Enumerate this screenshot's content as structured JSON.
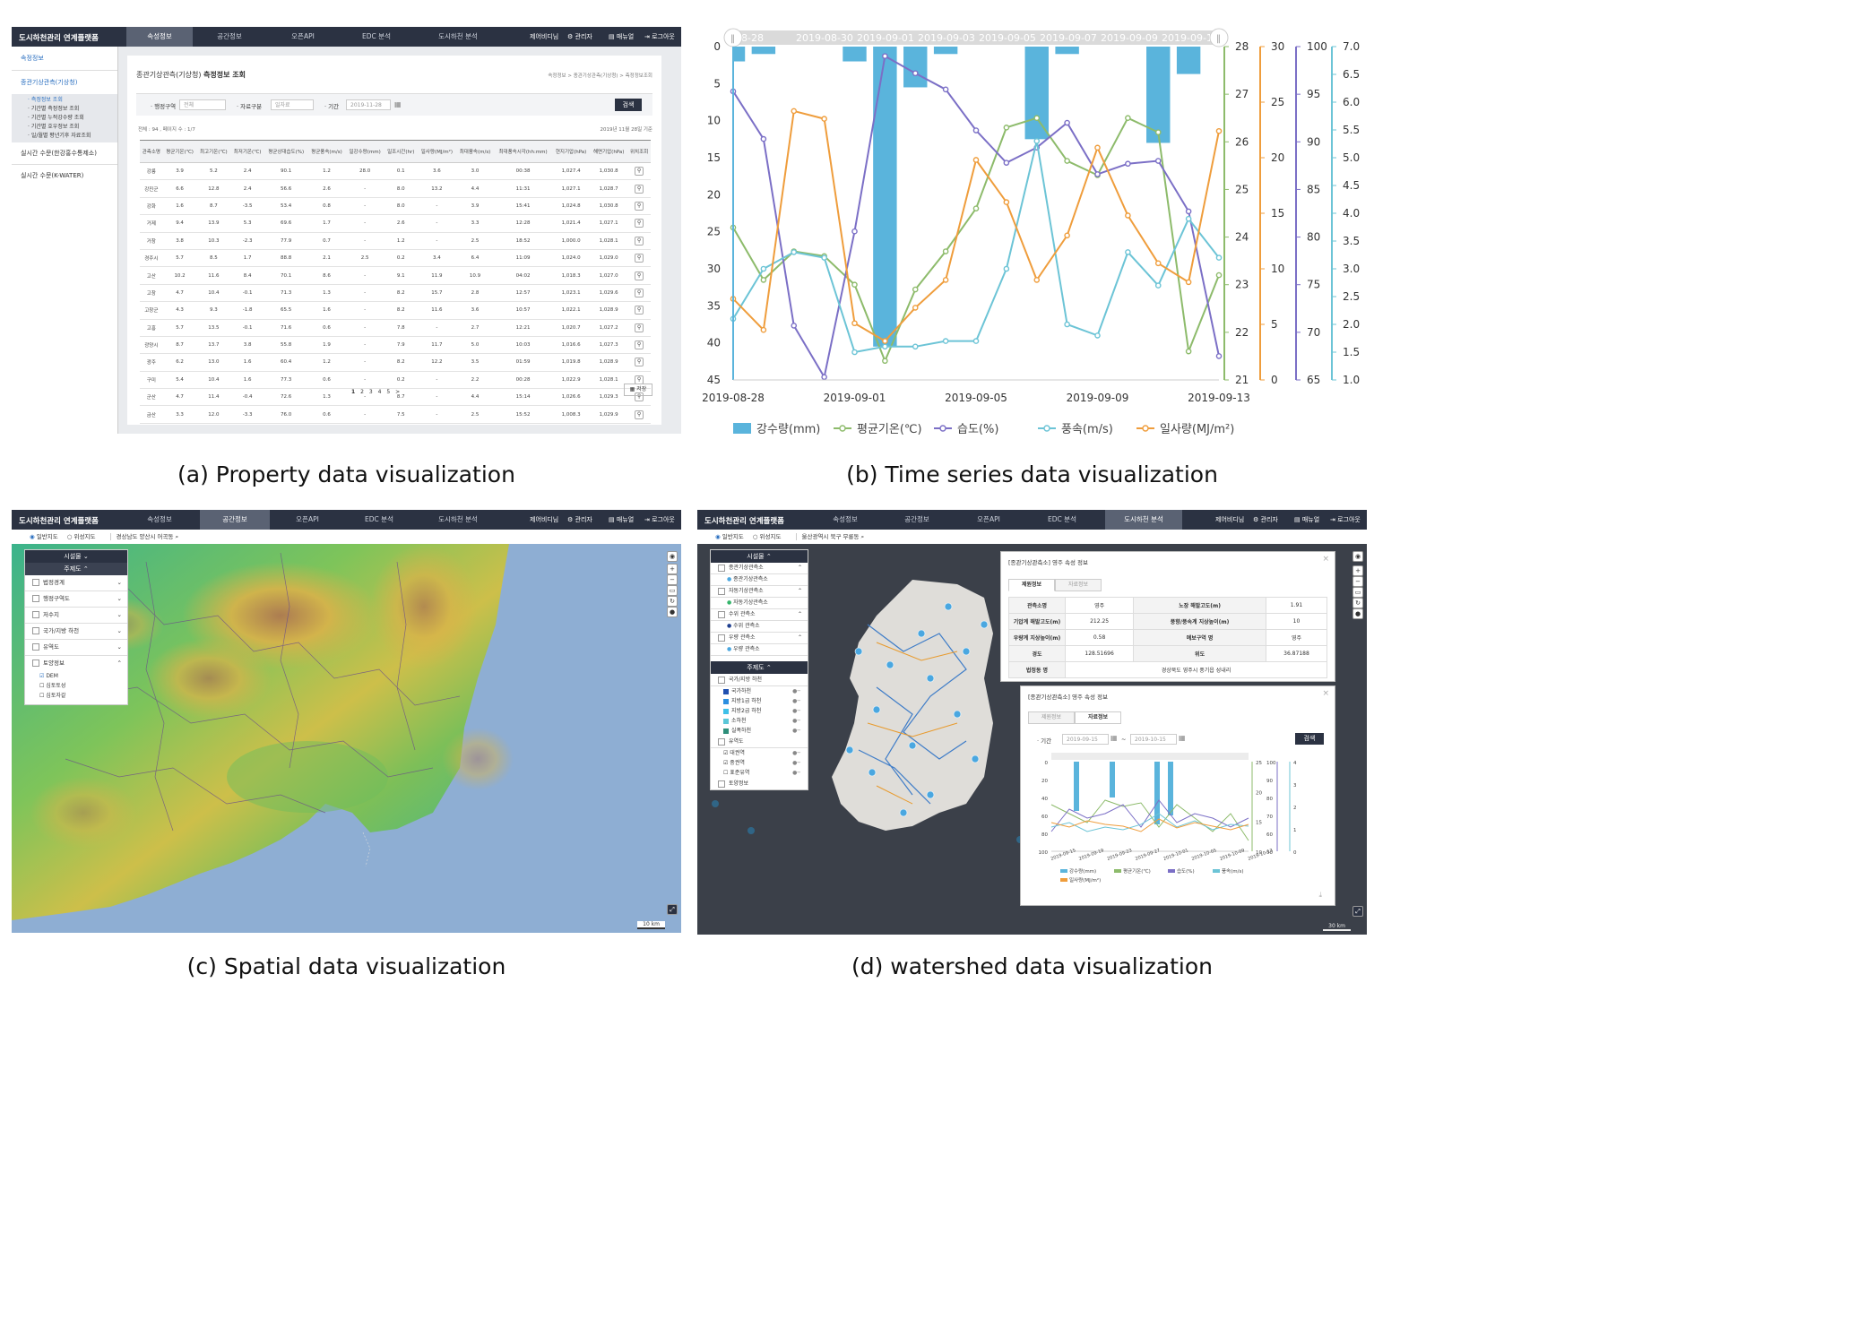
{
  "app": {
    "title": "도시하천관리 연계플랫폼",
    "nav": [
      "속성정보",
      "공간정보",
      "오픈API",
      "EDC 분석",
      "도시하천 분석"
    ],
    "util": [
      "제어비디님",
      "관리자",
      "매뉴얼",
      "로그아웃"
    ]
  },
  "captions": {
    "a": "(a) Property data visualization",
    "b": "(b) Time series data visualization",
    "c": "(c) Spatial data visualization",
    "d": "(d) watershed data visualization"
  },
  "panel_a": {
    "sidebar": {
      "section": "속정정보",
      "group": "종관기상관측(기상청)",
      "subitems": [
        "· 측정정보 조회",
        "· 기간별 측정정보 조회",
        "· 기간별 누적강수량 조회",
        "· 기간별 호우정보 조회",
        "· 일/월별 평년기후 자료조회"
      ],
      "items": [
        "실시간 수문(한강홍수통제소)",
        "실시간 수문(K-WATER)"
      ]
    },
    "page_title": "종관기상관측(기상청)",
    "page_subtitle": "측정정보 조회",
    "breadcrumb": "속정정보 > 종관기상관측(기상청) > 측정정보조회",
    "filters": {
      "region_label": "· 행정구역",
      "region_value": "전체",
      "type_label": "· 자료구분",
      "type_value": "일자료",
      "period_label": "· 기간",
      "period_value": "2019-11-28",
      "search_label": "검색"
    },
    "summary": "전체 : 94 , 페이지 수 : 1/7",
    "date_note": "2019년 11월 28일 기준",
    "columns": [
      "관측소명",
      "평균기온(℃)",
      "최고기온(℃)",
      "최저기온(℃)",
      "평균상대습도(%)",
      "평균풍속(m/s)",
      "일강수량(mm)",
      "일조시간(hr)",
      "일사량(MJ/m²)",
      "최대풍속(m/s)",
      "최대풍속시각(hh:mm)",
      "현지기압(hPa)",
      "해면기압(hPa)",
      "위치조회"
    ],
    "rows": [
      [
        "강릉",
        "3.9",
        "5.2",
        "2.4",
        "90.1",
        "1.2",
        "28.0",
        "0.1",
        "3.6",
        "3.0",
        "00:38",
        "1,027.4",
        "1,030.8"
      ],
      [
        "강진군",
        "6.6",
        "12.8",
        "2.4",
        "56.6",
        "2.6",
        "-",
        "8.0",
        "13.2",
        "4.4",
        "11:31",
        "1,027.1",
        "1,028.7"
      ],
      [
        "강화",
        "1.6",
        "8.7",
        "-3.5",
        "53.4",
        "0.8",
        "-",
        "8.0",
        "-",
        "3.9",
        "15:41",
        "1,024.8",
        "1,030.8"
      ],
      [
        "거제",
        "9.4",
        "13.9",
        "5.3",
        "69.6",
        "1.7",
        "-",
        "2.6",
        "-",
        "3.3",
        "12:28",
        "1,021.4",
        "1,027.1"
      ],
      [
        "거창",
        "3.8",
        "10.3",
        "-2.3",
        "77.9",
        "0.7",
        "-",
        "1.2",
        "-",
        "2.5",
        "18:52",
        "1,000.0",
        "1,028.1"
      ],
      [
        "경주시",
        "5.7",
        "8.5",
        "1.7",
        "88.8",
        "2.1",
        "2.5",
        "0.2",
        "3.4",
        "6.4",
        "11:09",
        "1,024.0",
        "1,029.0"
      ],
      [
        "고산",
        "10.2",
        "11.6",
        "8.4",
        "70.1",
        "8.6",
        "-",
        "9.1",
        "11.9",
        "10.9",
        "04:02",
        "1,018.3",
        "1,027.0"
      ],
      [
        "고창",
        "4.7",
        "10.4",
        "-0.1",
        "71.3",
        "1.3",
        "-",
        "8.2",
        "15.7",
        "2.8",
        "12:57",
        "1,023.1",
        "1,029.6"
      ],
      [
        "고창군",
        "4.3",
        "9.3",
        "-1.8",
        "65.5",
        "1.6",
        "-",
        "8.2",
        "11.6",
        "3.6",
        "10:57",
        "1,022.1",
        "1,028.9"
      ],
      [
        "고흥",
        "5.7",
        "13.5",
        "-0.1",
        "71.6",
        "0.6",
        "-",
        "7.8",
        "-",
        "2.7",
        "12:21",
        "1,020.7",
        "1,027.2"
      ],
      [
        "광양시",
        "8.7",
        "13.7",
        "3.8",
        "55.8",
        "1.9",
        "-",
        "7.9",
        "11.7",
        "5.0",
        "10:03",
        "1,016.6",
        "1,027.3"
      ],
      [
        "광주",
        "6.2",
        "13.0",
        "1.6",
        "60.4",
        "1.2",
        "-",
        "8.2",
        "12.2",
        "3.5",
        "01:59",
        "1,019.8",
        "1,028.9"
      ],
      [
        "구미",
        "5.4",
        "10.4",
        "1.6",
        "77.3",
        "0.6",
        "-",
        "0.2",
        "-",
        "2.2",
        "00:28",
        "1,022.9",
        "1,028.1"
      ],
      [
        "군산",
        "4.7",
        "11.4",
        "-0.4",
        "72.6",
        "1.3",
        "-",
        "8.7",
        "-",
        "4.4",
        "15:14",
        "1,026.6",
        "1,029.3"
      ],
      [
        "금산",
        "3.3",
        "12.0",
        "-3.3",
        "76.0",
        "0.6",
        "-",
        "7.5",
        "-",
        "2.5",
        "15:52",
        "1,008.3",
        "1,029.9"
      ]
    ],
    "pager": [
      "1",
      "2",
      "3",
      "4",
      "5",
      ">"
    ],
    "save_label": "저장"
  },
  "chart_data": {
    "type": "line",
    "x": [
      "2019-08-28",
      "2019-08-29",
      "2019-08-30",
      "2019-08-31",
      "2019-09-01",
      "2019-09-02",
      "2019-09-03",
      "2019-09-04",
      "2019-09-05",
      "2019-09-06",
      "2019-09-07",
      "2019-09-08",
      "2019-09-09",
      "2019-09-10",
      "2019-09-11",
      "2019-09-12",
      "2019-09-13"
    ],
    "x_ticks": [
      "2019-08-28",
      "2019-09-01",
      "2019-09-05",
      "2019-09-09",
      "2019-09-13"
    ],
    "slider_labels": [
      "08-28",
      "2019-08-30",
      "2019-09-01",
      "2019-09-03",
      "2019-09-05",
      "2019-09-07",
      "2019-09-09",
      "2019-09-11"
    ],
    "series": [
      {
        "name": "강수량(mm)",
        "kind": "bar",
        "axis": "rain",
        "color": "#5ab4dc",
        "values": [
          2,
          1,
          null,
          null,
          2,
          40.5,
          5.5,
          1,
          null,
          null,
          12.5,
          1,
          null,
          null,
          13,
          3.7,
          null
        ]
      },
      {
        "name": "평균기온(℃)",
        "kind": "line",
        "axis": "temp",
        "color": "#8dbb6b",
        "values": [
          24.2,
          23.1,
          23.7,
          23.6,
          23.0,
          21.4,
          22.9,
          23.7,
          24.6,
          26.3,
          26.5,
          25.6,
          25.3,
          26.5,
          26.2,
          21.6,
          23.2
        ]
      },
      {
        "name": "습도(%)",
        "kind": "line",
        "axis": "humid",
        "color": "#7b6fc6",
        "values": [
          95.3,
          90.3,
          70.7,
          65.3,
          80.6,
          99.0,
          97.2,
          95.5,
          91.2,
          87.8,
          89.4,
          92.0,
          86.6,
          87.7,
          88.0,
          82.7,
          67.5
        ]
      },
      {
        "name": "풍속(m/s)",
        "kind": "line",
        "axis": "wind",
        "color": "#6cc4d6",
        "values": [
          2.1,
          3.0,
          3.3,
          3.2,
          1.5,
          1.6,
          1.6,
          1.7,
          1.7,
          3.0,
          5.3,
          2.0,
          1.8,
          3.3,
          2.7,
          3.9,
          3.2
        ]
      },
      {
        "name": "일사량(MJ/m²)",
        "kind": "line",
        "axis": "solar",
        "color": "#ef9d3c",
        "values": [
          7.3,
          4.5,
          24.2,
          23.5,
          5.1,
          3.5,
          6.5,
          9.0,
          19.8,
          16.0,
          9.0,
          13.0,
          20.9,
          14.8,
          10.5,
          8.8,
          22.4
        ]
      }
    ],
    "axes": {
      "rain": {
        "range": [
          45,
          0
        ],
        "ticks": [
          0,
          5,
          10,
          15,
          20,
          25,
          30,
          35,
          40,
          45
        ],
        "inverted": true
      },
      "temp": {
        "range": [
          21,
          28
        ],
        "ticks": [
          21,
          22,
          23,
          24,
          25,
          26,
          27,
          28
        ]
      },
      "solar": {
        "range": [
          0,
          30
        ],
        "ticks": [
          0,
          5,
          10,
          15,
          20,
          25,
          30
        ]
      },
      "humid": {
        "range": [
          65,
          100
        ],
        "ticks": [
          65,
          70,
          75,
          80,
          85,
          90,
          95,
          100
        ]
      },
      "wind": {
        "range": [
          1.0,
          7.0
        ],
        "ticks": [
          "1.0",
          "1.5",
          "2.0",
          "2.5",
          "3.0",
          "3.5",
          "4.0",
          "4.5",
          "5.0",
          "5.5",
          "6.0",
          "6.5",
          "7.0"
        ]
      }
    },
    "legend_position": "bottom",
    "grid": false
  },
  "panel_c": {
    "map_types": [
      "일반지도",
      "위성지도"
    ],
    "search_text": "경상남도 양산시 어곡동",
    "facilities_title": "시설물",
    "themes_title": "주제도",
    "layers": [
      "법정경계",
      "행정구역도",
      "저수지",
      "국가/지방 하천",
      "유역도",
      "토양정보"
    ],
    "soil_sub": [
      "DEM",
      "심토토성",
      "심토자갈"
    ],
    "scale": "10 km",
    "colors": {
      "sea": "#8eaed3",
      "low": "#2fb59a",
      "mid": "#d6c44a",
      "high": "#b77852"
    }
  },
  "panel_d": {
    "map_types": [
      "일반지도",
      "위성지도"
    ],
    "search_text": "울산광역시 북구 무룡동",
    "facilities_title": "시설물",
    "facilities": [
      {
        "group": "종관기상관측소",
        "item": "종관기상관측소"
      },
      {
        "group": "자동기상관측소",
        "item": "자동기상관측소"
      },
      {
        "group": "수위 관측소",
        "item": "수위 관측소"
      },
      {
        "group": "우량 관측소",
        "item": "우량 관측소"
      }
    ],
    "themes_title": "주제도",
    "river_group": "국가/지방 하천",
    "rivers": [
      "국가하천",
      "지방1급 하천",
      "지방2급 하천",
      "소하천",
      "실폭하천"
    ],
    "basin_group": "유역도",
    "basins": [
      "대권역",
      "중권역",
      "표준유역"
    ],
    "soil_group": "토양정보",
    "info_popup": {
      "title": "[종관기상관측소] 영주 속성 정보",
      "tabs": [
        "제원정보",
        "자료정보"
      ],
      "rows": [
        [
          "관측소명",
          "영주",
          "노장 해발고도(m)",
          "1.91"
        ],
        [
          "기압계 해발고도(m)",
          "212.25",
          "풍향/풍속계 지상높이(m)",
          "10"
        ],
        [
          "우량계 지상높이(m)",
          "0.58",
          "예보구역 명",
          "영주"
        ],
        [
          "경도",
          "128.51696",
          "위도",
          "36.87188"
        ]
      ],
      "address_label": "법정동 명",
      "address": "경상북도 영주시 풍기읍 성내리"
    },
    "chart_popup": {
      "title": "[종관기상관측소] 영주 속성 정보",
      "tabs": [
        "제원정보",
        "자료정보"
      ],
      "period_label": "· 기간",
      "from": "2019-09-15",
      "to": "2019-10-15",
      "search_label": "검색",
      "x_ticks": [
        "2019-09-15",
        "2019-09-19",
        "2019-09-23",
        "2019-09-27",
        "2019-10-01",
        "2019-10-05",
        "2019-10-09",
        "2019-10-13"
      ],
      "y_ticks_left": [
        "0",
        "20",
        "40",
        "60",
        "80",
        "100"
      ],
      "y_ticks_r1": [
        "25",
        "20",
        "15",
        "10"
      ],
      "y_ticks_r2": [
        "100",
        "90",
        "80",
        "70",
        "60",
        "50"
      ],
      "y_ticks_r3": [
        "4",
        "3",
        "2",
        "1",
        "0"
      ],
      "legend": [
        "강수량(mm)",
        "평균기온(℃)",
        "습도(%)",
        "풍속(m/s)",
        "일사량(MJ/m²)"
      ]
    },
    "scale": "30 km"
  }
}
